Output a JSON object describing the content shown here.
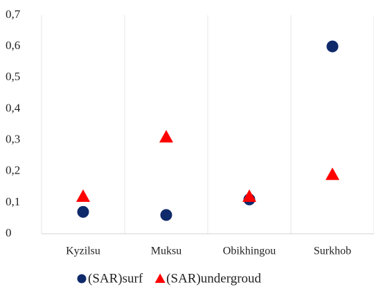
{
  "chart_data": {
    "type": "scatter",
    "categories": [
      "Kyzilsu",
      "Muksu",
      "Obikhingou",
      "Surkhob"
    ],
    "series": [
      {
        "name": "(SAR)surf",
        "color": "#0f2a6a",
        "marker": "circle",
        "values": [
          0.07,
          0.06,
          0.11,
          0.6
        ]
      },
      {
        "name": "(SAR)undergroud",
        "color": "#ff0000",
        "marker": "triangle",
        "values": [
          0.12,
          0.31,
          0.12,
          0.19
        ]
      }
    ],
    "ylim": [
      0,
      0.7
    ],
    "yticks": [
      0,
      {
        "value": 0.1,
        "label": "0,1"
      },
      {
        "value": 0.2,
        "label": "0,2"
      },
      {
        "value": 0.3,
        "label": "0,3"
      },
      {
        "value": 0.4,
        "label": "0,4"
      },
      {
        "value": 0.5,
        "label": "0,5"
      },
      {
        "value": 0.6,
        "label": "0,6"
      },
      {
        "value": 0.7,
        "label": "0,7"
      }
    ],
    "grid": "x",
    "legend": "bottom"
  }
}
